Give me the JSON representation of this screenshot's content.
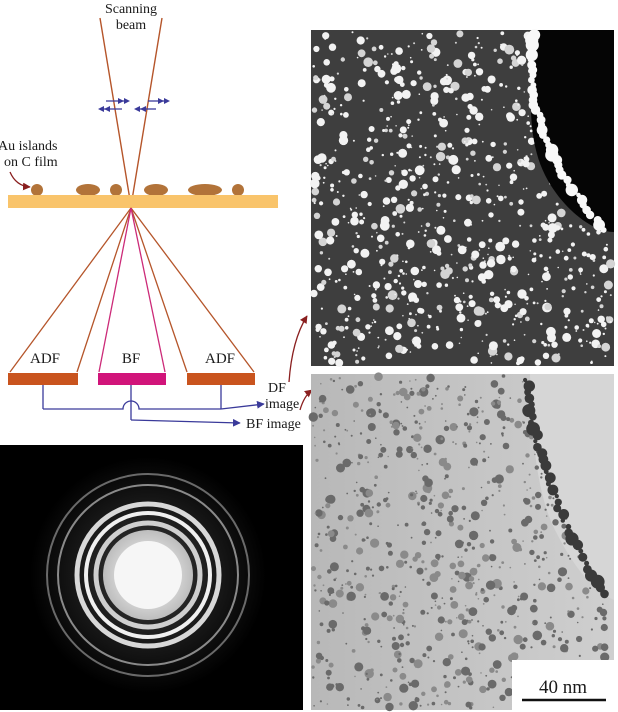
{
  "labels": {
    "scanning_line1": "Scanning",
    "scanning_line2": "beam",
    "au_line1": "Au islands",
    "au_line2": "on C film",
    "adf_left": "ADF",
    "bf": "BF",
    "adf_right": "ADF",
    "df_line1": "DF",
    "df_line2": "image",
    "bf_image": "BF image",
    "scale_bar": "40 nm"
  },
  "colors": {
    "beam": "#b5552a",
    "film": "#f9c46b",
    "island": "#b27339",
    "adf_detector": "#c9541e",
    "bf_detector": "#d1147a",
    "bf_cone": "#cc2a78",
    "signal": "#3a3a9a"
  }
}
